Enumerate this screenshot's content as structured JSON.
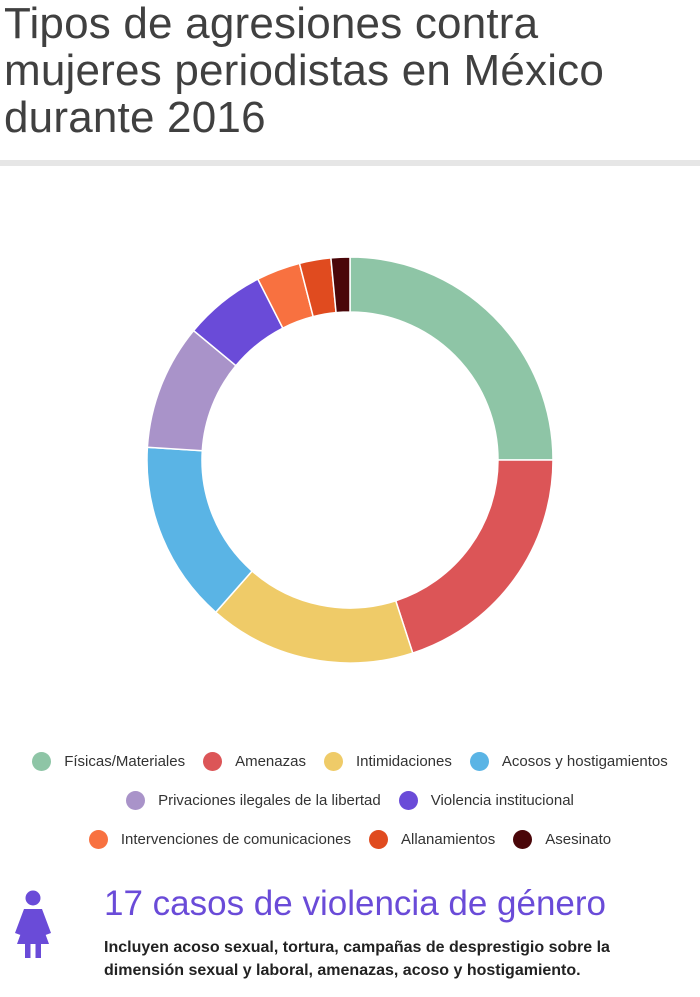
{
  "title": "Tipos de agresiones contra mujeres periodistas en México durante 2016",
  "chart_data": {
    "type": "pie",
    "variant": "donut",
    "title": "Tipos de agresiones contra mujeres periodistas en México durante 2016",
    "legend_placement": "bottom",
    "slices": [
      {
        "name": "Físicas/Materiales",
        "value": 25.0,
        "color": "#8ec5a6"
      },
      {
        "name": "Amenazas",
        "value": 20.0,
        "color": "#dc5557"
      },
      {
        "name": "Intimidaciones",
        "value": 16.5,
        "color": "#efcb68"
      },
      {
        "name": "Acosos y hostigamientos",
        "value": 14.5,
        "color": "#5ab4e5"
      },
      {
        "name": "Privaciones ilegales de la libertad",
        "value": 10.0,
        "color": "#a993c9"
      },
      {
        "name": "Violencia institucional",
        "value": 6.5,
        "color": "#6a4bd8"
      },
      {
        "name": "Intervenciones de comunicaciones",
        "value": 3.5,
        "color": "#f87140"
      },
      {
        "name": "Allanamientos",
        "value": 2.5,
        "color": "#e04b1f"
      },
      {
        "name": "Asesinato",
        "value": 1.5,
        "color": "#4a0609"
      }
    ]
  },
  "callout": {
    "icon": "woman-icon",
    "icon_color": "#6a4bd8",
    "title": "17 casos de violencia de género",
    "text": "Incluyen acoso sexual, tortura, campañas de desprestigio sobre la dimensión sexual y laboral, amenazas, acoso y hostigamiento."
  }
}
